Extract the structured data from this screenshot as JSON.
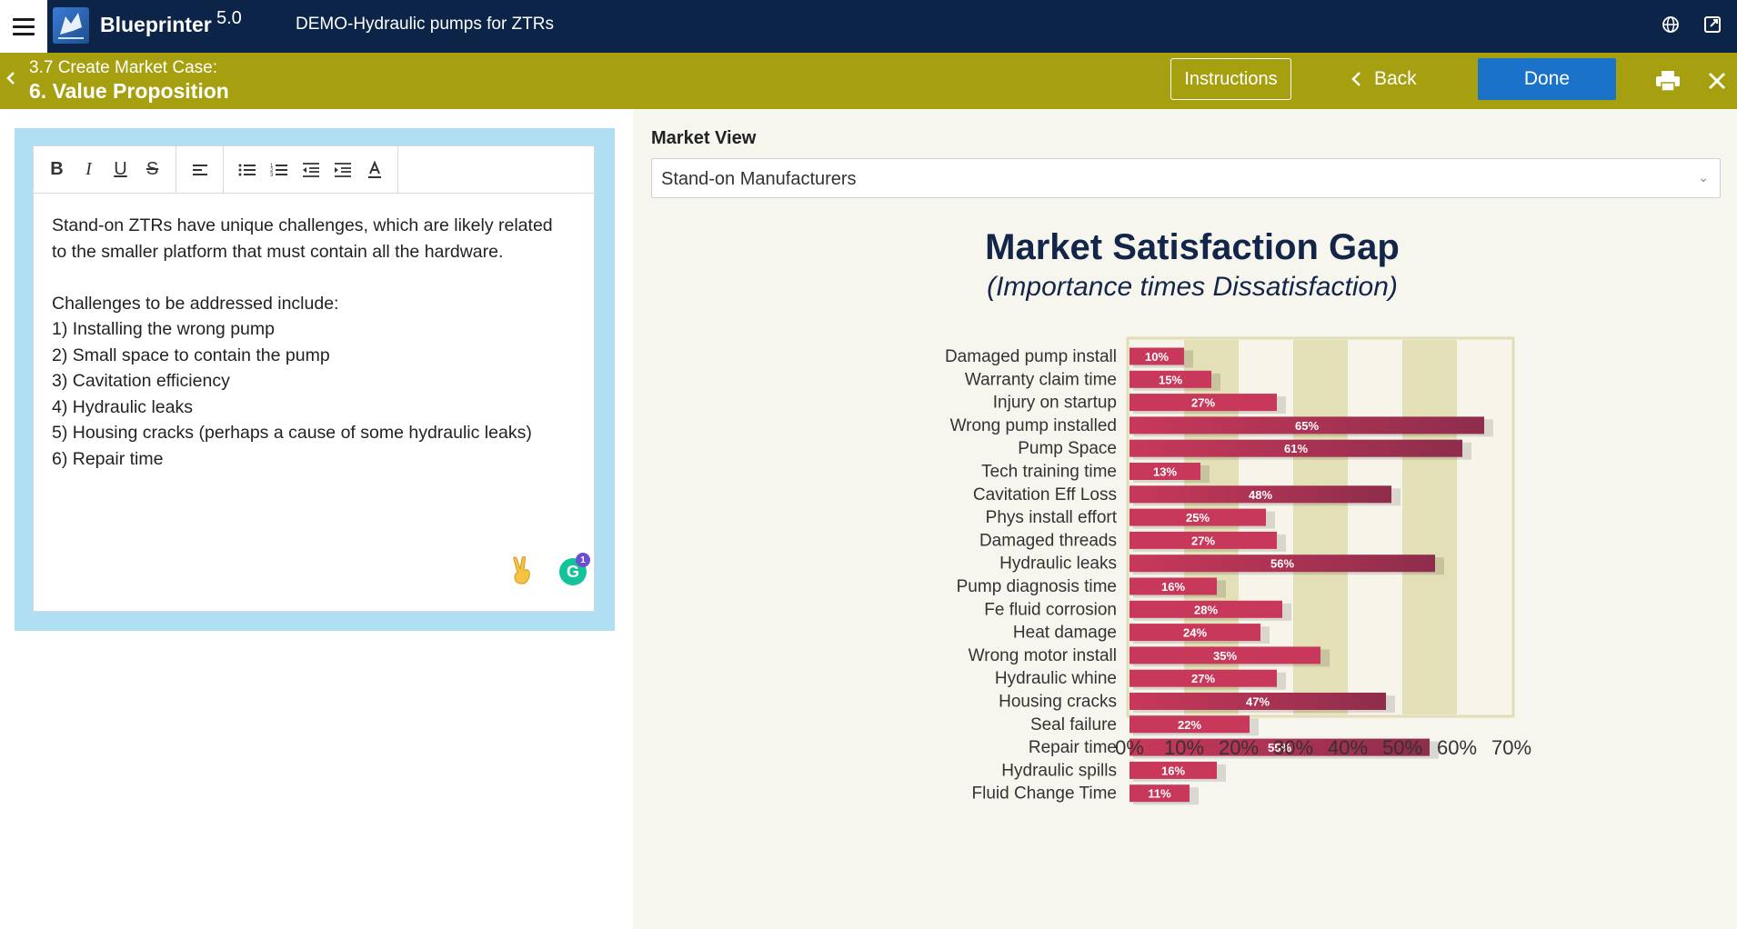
{
  "app": {
    "brand": "Blueprinter",
    "version": "5.0",
    "project": "DEMO-Hydraulic pumps for ZTRs"
  },
  "step": {
    "number_label": "3.7 Create Market Case:",
    "title": "6. Value Proposition"
  },
  "actions": {
    "instructions": "Instructions",
    "back": "Back",
    "done": "Done"
  },
  "editor": {
    "lines": [
      "Stand-on ZTRs have unique challenges, which are likely related",
      "to the smaller platform that must contain all the hardware.",
      "",
      "Challenges to be addressed include:",
      "1) Installing the wrong pump",
      "2) Small space to contain the pump",
      "3) Cavitation efficiency",
      "4) Hydraulic leaks",
      "5) Housing cracks (perhaps a cause of some hydraulic leaks)",
      "6) Repair time"
    ],
    "grammarly_count": "1"
  },
  "market_view": {
    "label": "Market View",
    "selected": "Stand-on Manufacturers"
  },
  "chart_data": {
    "type": "bar",
    "orientation": "horizontal",
    "title": "Market Satisfaction Gap",
    "subtitle": "(Importance times Dissatisfaction)",
    "categories": [
      "Damaged pump install",
      "Warranty claim time",
      "Injury on startup",
      "Wrong pump installed",
      "Pump Space",
      "Tech training time",
      "Cavitation Eff Loss",
      "Phys install effort",
      "Damaged threads",
      "Hydraulic leaks",
      "Pump diagnosis time",
      "Fe fluid corrosion",
      "Heat damage",
      "Wrong motor install",
      "Hydraulic whine",
      "Housing cracks",
      "Seal failure",
      "Repair time",
      "Hydraulic spills",
      "Fluid Change Time"
    ],
    "values": [
      10,
      15,
      27,
      65,
      61,
      13,
      48,
      25,
      27,
      56,
      16,
      28,
      24,
      35,
      27,
      47,
      22,
      55,
      16,
      11
    ],
    "value_labels": [
      "10%",
      "15%",
      "27%",
      "65%",
      "61%",
      "13%",
      "48%",
      "25%",
      "27%",
      "56%",
      "16%",
      "28%",
      "24%",
      "35%",
      "27%",
      "47%",
      "22%",
      "55%",
      "16%",
      "11%"
    ],
    "xlim": [
      0,
      70
    ],
    "x_ticks": [
      "0%",
      "10%",
      "20%",
      "30%",
      "40%",
      "50%",
      "60%",
      "70%"
    ],
    "bar_color": "#c8385a",
    "bar_color_dark": "#8e2d4c",
    "band_color": "#e3dfb6"
  }
}
